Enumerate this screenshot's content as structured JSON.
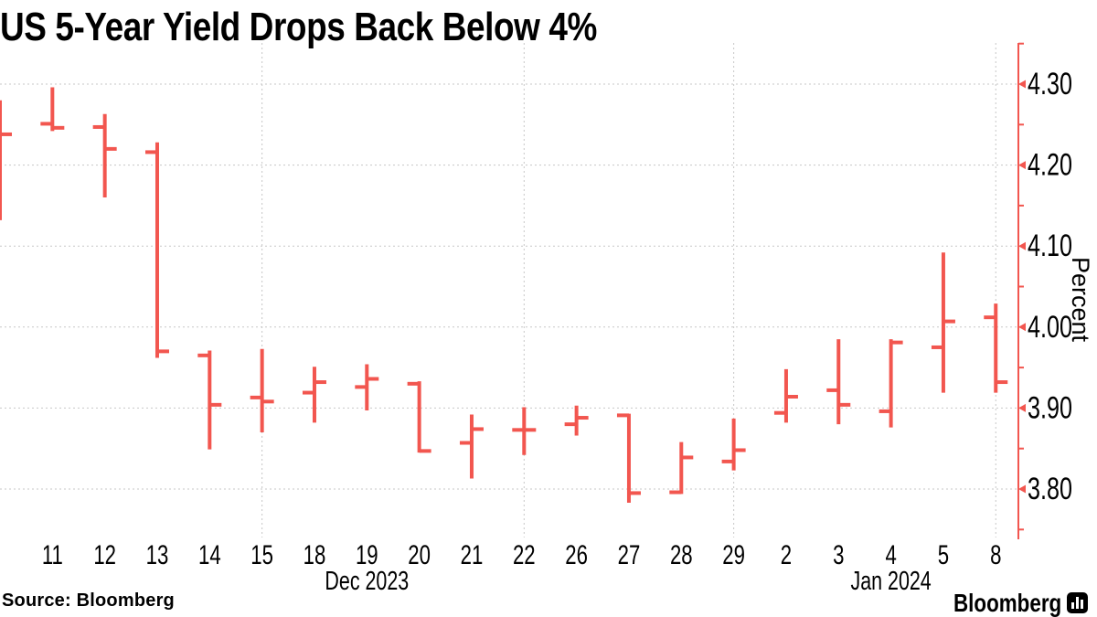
{
  "header": {
    "title": "US 5-Year Yield Drops Back Below 4%"
  },
  "footer": {
    "source": "Source: Bloomberg",
    "logo": "Bloomberg"
  },
  "chart_data": {
    "type": "ohlc-bar",
    "title": "US 5-Year Yield Drops Back Below 4%",
    "ylabel": "Percent",
    "y_ticks": [
      "4.30",
      "4.20",
      "4.10",
      "4.00",
      "3.90",
      "3.80"
    ],
    "y_minor_ticks": [
      4.35,
      4.25,
      4.15,
      4.05,
      3.95,
      3.85,
      3.75
    ],
    "ylim": [
      3.74,
      4.35
    ],
    "grid": true,
    "legend": "none",
    "bar_color": "#F2564F",
    "grid_color": "#c7c7c7",
    "vertical_gridline_indices": [
      5,
      10,
      14,
      19
    ],
    "months": [
      {
        "label": "Dec 2023",
        "from": 0,
        "to": 14
      },
      {
        "label": "Jan 2024",
        "from": 15,
        "to": 19
      }
    ],
    "points": [
      {
        "date": "",
        "open": null,
        "high": 4.28,
        "low": 4.132,
        "close": 4.238
      },
      {
        "date": "11",
        "open": 4.251,
        "high": 4.296,
        "low": 4.242,
        "close": 4.246
      },
      {
        "date": "12",
        "open": 4.247,
        "high": 4.263,
        "low": 4.16,
        "close": 4.22
      },
      {
        "date": "13",
        "open": 4.216,
        "high": 4.228,
        "low": 3.962,
        "close": 3.97
      },
      {
        "date": "14",
        "open": 3.965,
        "high": 3.971,
        "low": 3.849,
        "close": 3.904
      },
      {
        "date": "15",
        "open": 3.913,
        "high": 3.973,
        "low": 3.87,
        "close": 3.908
      },
      {
        "date": "18",
        "open": 3.919,
        "high": 3.951,
        "low": 3.882,
        "close": 3.932
      },
      {
        "date": "19",
        "open": 3.926,
        "high": 3.954,
        "low": 3.897,
        "close": 3.936
      },
      {
        "date": "20",
        "open": 3.93,
        "high": 3.933,
        "low": 3.845,
        "close": 3.847
      },
      {
        "date": "21",
        "open": 3.857,
        "high": 3.892,
        "low": 3.813,
        "close": 3.874
      },
      {
        "date": "22",
        "open": 3.873,
        "high": 3.901,
        "low": 3.842,
        "close": 3.873
      },
      {
        "date": "26",
        "open": 3.88,
        "high": 3.903,
        "low": 3.866,
        "close": 3.888
      },
      {
        "date": "27",
        "open": 3.891,
        "high": 3.893,
        "low": 3.783,
        "close": 3.795
      },
      {
        "date": "28",
        "open": 3.796,
        "high": 3.858,
        "low": 3.794,
        "close": 3.839
      },
      {
        "date": "29",
        "open": 3.834,
        "high": 3.887,
        "low": 3.823,
        "close": 3.848
      },
      {
        "date": "2",
        "open": 3.894,
        "high": 3.948,
        "low": 3.882,
        "close": 3.914
      },
      {
        "date": "3",
        "open": 3.922,
        "high": 3.985,
        "low": 3.88,
        "close": 3.904
      },
      {
        "date": "4",
        "open": 3.896,
        "high": 3.985,
        "low": 3.876,
        "close": 3.981
      },
      {
        "date": "5",
        "open": 3.975,
        "high": 4.092,
        "low": 3.919,
        "close": 4.007
      },
      {
        "date": "8",
        "open": 4.012,
        "high": 4.029,
        "low": 3.919,
        "close": 3.932
      }
    ]
  }
}
